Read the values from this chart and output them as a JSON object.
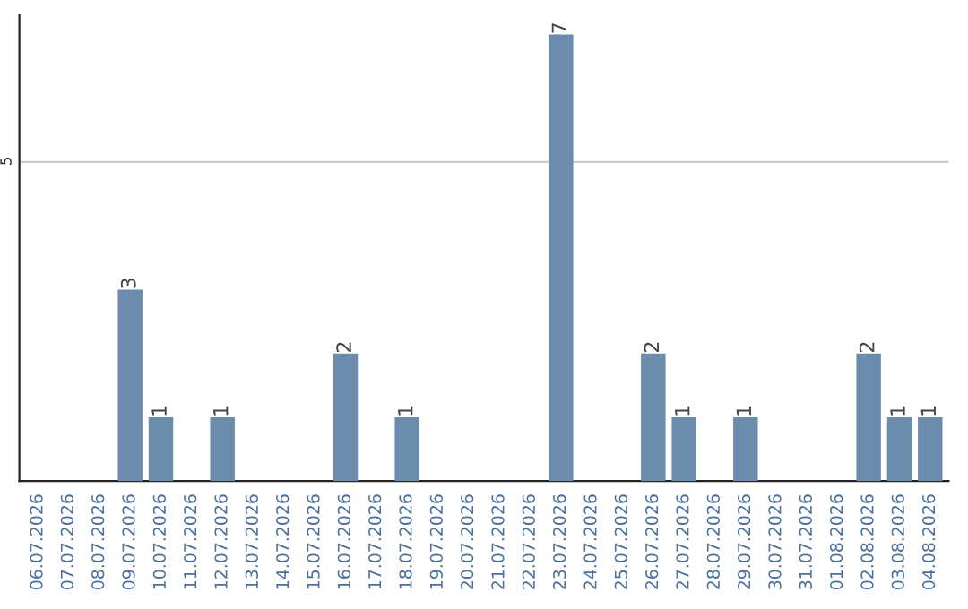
{
  "chart_data": {
    "type": "bar",
    "categories": [
      "06.07.2026",
      "07.07.2026",
      "08.07.2026",
      "09.07.2026",
      "10.07.2026",
      "11.07.2026",
      "12.07.2026",
      "13.07.2026",
      "14.07.2026",
      "15.07.2026",
      "16.07.2026",
      "17.07.2026",
      "18.07.2026",
      "19.07.2026",
      "20.07.2026",
      "21.07.2026",
      "22.07.2026",
      "23.07.2026",
      "24.07.2026",
      "25.07.2026",
      "26.07.2026",
      "27.07.2026",
      "28.07.2026",
      "29.07.2026",
      "30.07.2026",
      "31.07.2026",
      "01.08.2026",
      "02.08.2026",
      "03.08.2026",
      "04.08.2026"
    ],
    "values": [
      0,
      0,
      0,
      3,
      1,
      0,
      1,
      0,
      0,
      0,
      2,
      0,
      1,
      0,
      0,
      0,
      0,
      7,
      0,
      0,
      2,
      1,
      0,
      1,
      0,
      0,
      0,
      2,
      1,
      1
    ],
    "value_labels": [
      null,
      null,
      null,
      "3",
      "1",
      null,
      "1",
      null,
      null,
      null,
      "2",
      null,
      "1",
      null,
      null,
      null,
      null,
      "7",
      null,
      null,
      "2",
      "1",
      null,
      "1",
      null,
      null,
      null,
      "2",
      "1",
      "1"
    ],
    "color": "#6b8cad",
    "ylim": [
      0,
      7.3
    ],
    "yticks": [
      5
    ],
    "grid": "y"
  }
}
